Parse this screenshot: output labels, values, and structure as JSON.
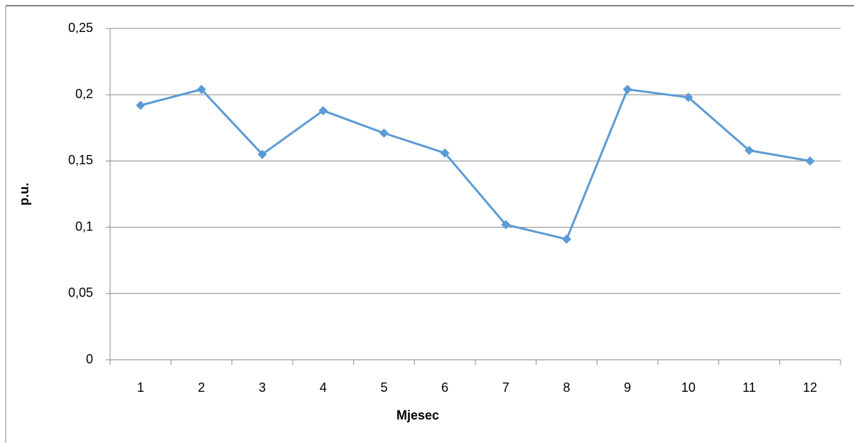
{
  "chart_data": {
    "type": "line",
    "categories": [
      1,
      2,
      3,
      4,
      5,
      6,
      7,
      8,
      9,
      10,
      11,
      12
    ],
    "series": [
      {
        "color": "#5b9bd5",
        "values": [
          0.192,
          0.204,
          0.155,
          0.188,
          0.171,
          0.156,
          0.102,
          0.091,
          0.204,
          0.198,
          0.158,
          0.15
        ]
      }
    ],
    "x_label": "Mjesec",
    "y_label": "p.u.",
    "ylim": [
      0,
      0.25
    ],
    "yticks": [
      0,
      {
        "value": 0.05,
        "label": "0,05"
      },
      {
        "value": 0.1,
        "label": "0,1"
      },
      {
        "value": 0.15,
        "label": "0,15"
      },
      {
        "value": 0.2,
        "label": "0,2"
      },
      {
        "value": 0.25,
        "label": "0,25"
      }
    ],
    "grid": true
  }
}
